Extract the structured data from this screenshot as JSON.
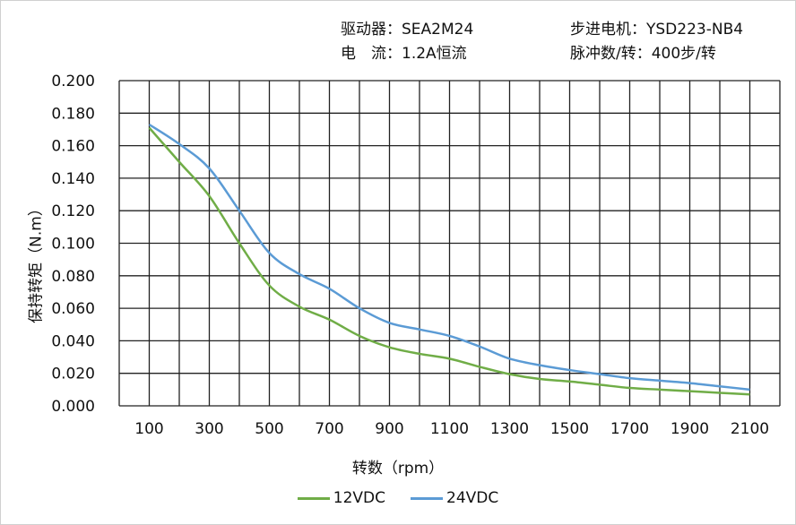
{
  "header": {
    "driver": "驱动器：SEA2M24",
    "motor": "步进电机：YSD223-NB4",
    "current": "电　流：1.2A恒流",
    "pulses": "脉冲数/转：400步/转"
  },
  "chart_data": {
    "type": "line",
    "xlabel": "转数（rpm）",
    "ylabel": "保持转矩（N.m）",
    "xlim": [
      0,
      2200
    ],
    "ylim": [
      0,
      0.2
    ],
    "grid": true,
    "legend_position": "bottom",
    "x_ticks": [
      "100",
      "300",
      "500",
      "700",
      "900",
      "1100",
      "1300",
      "1500",
      "1700",
      "1900",
      "2100"
    ],
    "y_ticks": [
      "0.000",
      "0.020",
      "0.040",
      "0.060",
      "0.080",
      "0.100",
      "0.120",
      "0.140",
      "0.160",
      "0.180",
      "0.200"
    ],
    "x": [
      100,
      200,
      300,
      400,
      500,
      600,
      700,
      800,
      900,
      1000,
      1100,
      1200,
      1300,
      1400,
      1500,
      1600,
      1700,
      1800,
      1900,
      2000,
      2100
    ],
    "series": [
      {
        "name": "12VDC",
        "color": "#70ad47",
        "values": [
          0.171,
          0.15,
          0.129,
          0.1,
          0.074,
          0.061,
          0.053,
          0.043,
          0.036,
          0.032,
          0.029,
          0.024,
          0.0195,
          0.0165,
          0.015,
          0.013,
          0.011,
          0.01,
          0.009,
          0.008,
          0.007
        ]
      },
      {
        "name": "24VDC",
        "color": "#5b9bd5",
        "values": [
          0.173,
          0.161,
          0.146,
          0.12,
          0.094,
          0.081,
          0.072,
          0.06,
          0.051,
          0.047,
          0.043,
          0.0365,
          0.029,
          0.025,
          0.022,
          0.0195,
          0.017,
          0.0155,
          0.014,
          0.012,
          0.01
        ]
      }
    ]
  }
}
